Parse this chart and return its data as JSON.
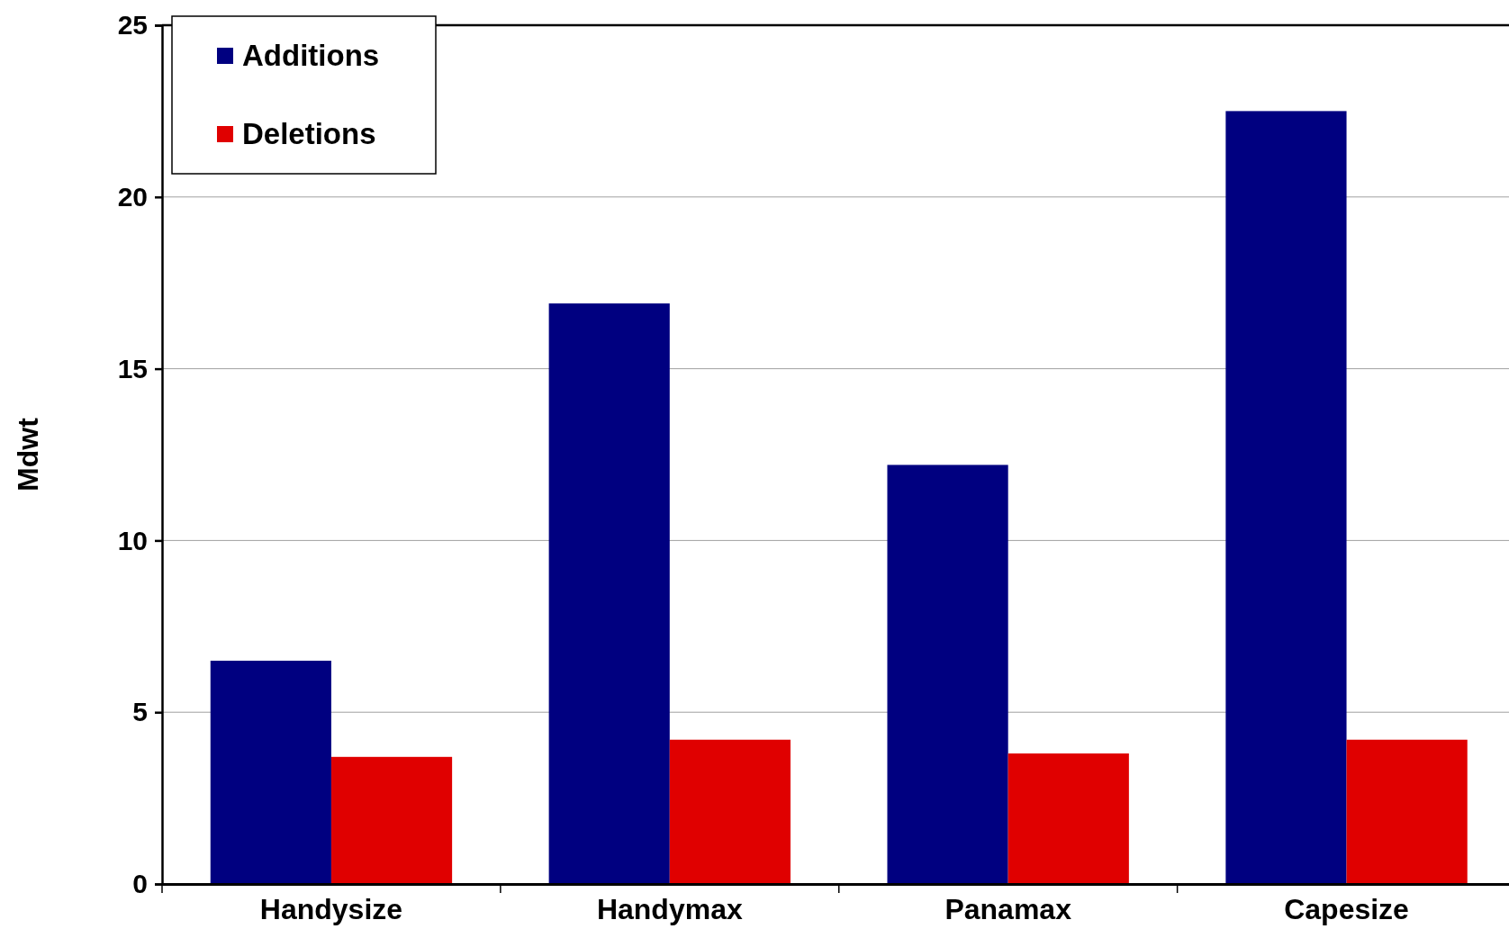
{
  "chart_data": {
    "type": "bar",
    "ylabel": "Mdwt",
    "categories": [
      "Handysize",
      "Handymax",
      "Panamax",
      "Capesize"
    ],
    "series": [
      {
        "name": "Additions",
        "color": "#000080",
        "values": [
          6.5,
          16.9,
          12.2,
          22.5
        ]
      },
      {
        "name": "Deletions",
        "color": "#e00000",
        "values": [
          3.7,
          4.2,
          3.8,
          4.2
        ]
      }
    ],
    "ylim": [
      0,
      25
    ],
    "yticks": [
      0,
      5,
      10,
      15,
      20,
      25
    ],
    "grid": "y",
    "legend": "top left"
  }
}
